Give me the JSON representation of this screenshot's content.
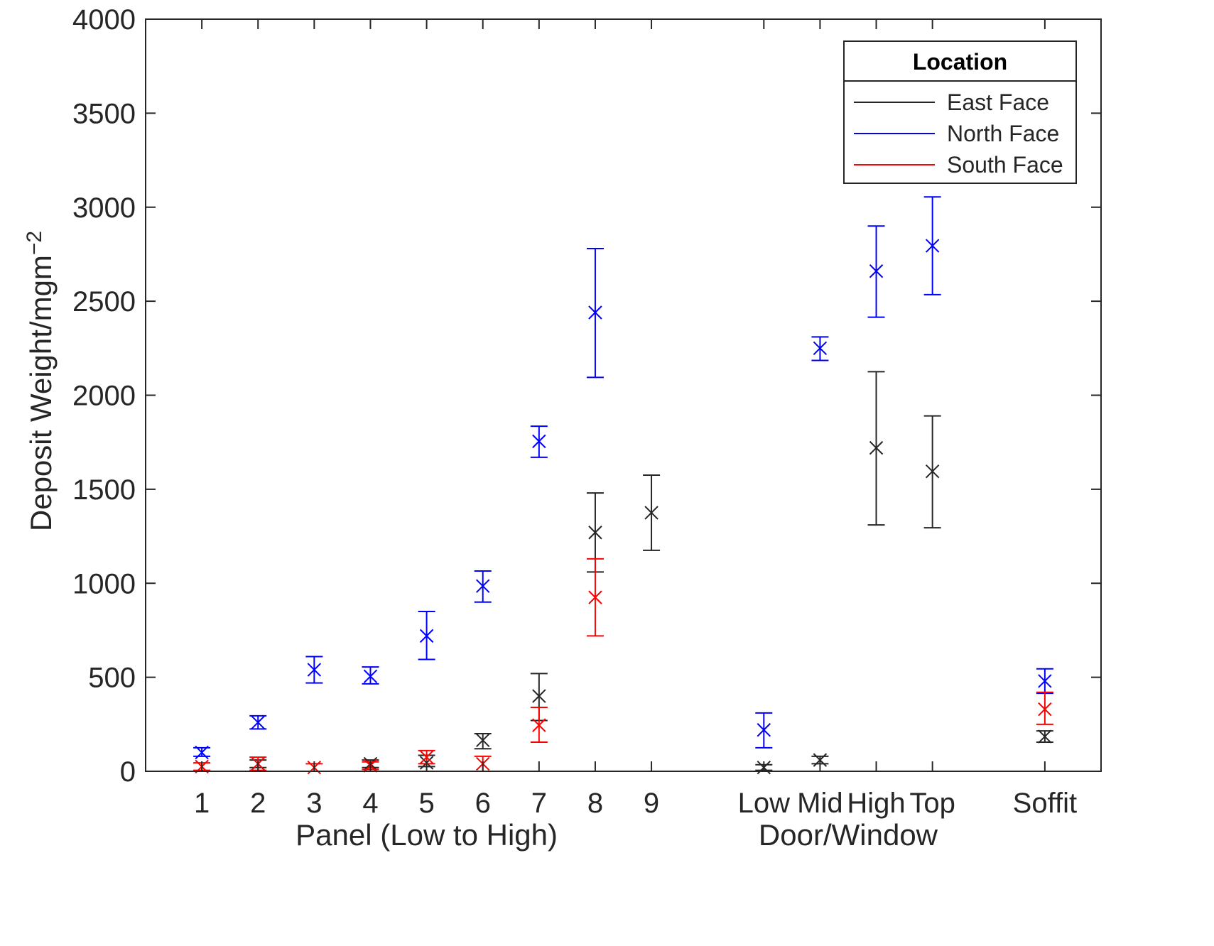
{
  "chart_data": {
    "type": "errorbar",
    "categories": [
      "1",
      "2",
      "3",
      "4",
      "5",
      "6",
      "7",
      "8",
      "9",
      "Low",
      "Mid",
      "High",
      "Top",
      "Soffit"
    ],
    "x": [
      1,
      2,
      3,
      4,
      5,
      6,
      7,
      8,
      9,
      11,
      12,
      13,
      14,
      16
    ],
    "xlim": [
      0,
      17
    ],
    "ylim": [
      0,
      4000
    ],
    "yticks": [
      0,
      500,
      1000,
      1500,
      2000,
      2500,
      3000,
      3500,
      4000
    ],
    "ylabel_base": "Deposit Weight/mgm",
    "ylabel_sup": "−2",
    "group_labels": [
      "Panel (Low to High)",
      "Door/Window"
    ],
    "legend": {
      "title": "Location",
      "position": "top-right"
    },
    "series": [
      {
        "name": "East Face",
        "color": "#262626",
        "points": [
          {
            "x": 2,
            "y": 40,
            "lo": 20,
            "hi": 60
          },
          {
            "x": 4,
            "y": 40,
            "lo": 20,
            "hi": 60
          },
          {
            "x": 5,
            "y": 45,
            "lo": 25,
            "hi": 85
          },
          {
            "x": 6,
            "y": 165,
            "lo": 120,
            "hi": 200
          },
          {
            "x": 7,
            "y": 400,
            "lo": 270,
            "hi": 520
          },
          {
            "x": 8,
            "y": 1270,
            "lo": 1060,
            "hi": 1480
          },
          {
            "x": 9,
            "y": 1375,
            "lo": 1175,
            "hi": 1575
          },
          {
            "x": 11,
            "y": 20,
            "lo": 5,
            "hi": 35
          },
          {
            "x": 12,
            "y": 60,
            "lo": 40,
            "hi": 80
          },
          {
            "x": 13,
            "y": 1720,
            "lo": 1310,
            "hi": 2125
          },
          {
            "x": 14,
            "y": 1595,
            "lo": 1295,
            "hi": 1890
          },
          {
            "x": 16,
            "y": 185,
            "lo": 155,
            "hi": 215
          }
        ]
      },
      {
        "name": "North Face",
        "color": "#0000ff",
        "points": [
          {
            "x": 1,
            "y": 100,
            "lo": 80,
            "hi": 125
          },
          {
            "x": 2,
            "y": 260,
            "lo": 225,
            "hi": 295
          },
          {
            "x": 3,
            "y": 540,
            "lo": 470,
            "hi": 610
          },
          {
            "x": 4,
            "y": 505,
            "lo": 465,
            "hi": 555
          },
          {
            "x": 5,
            "y": 720,
            "lo": 595,
            "hi": 850
          },
          {
            "x": 6,
            "y": 985,
            "lo": 900,
            "hi": 1065
          },
          {
            "x": 7,
            "y": 1755,
            "lo": 1670,
            "hi": 1835
          },
          {
            "x": 8,
            "y": 2440,
            "lo": 2095,
            "hi": 2780
          },
          {
            "x": 11,
            "y": 220,
            "lo": 125,
            "hi": 310
          },
          {
            "x": 12,
            "y": 2250,
            "lo": 2185,
            "hi": 2310
          },
          {
            "x": 13,
            "y": 2660,
            "lo": 2415,
            "hi": 2900
          },
          {
            "x": 14,
            "y": 2795,
            "lo": 2535,
            "hi": 3055
          },
          {
            "x": 16,
            "y": 480,
            "lo": 415,
            "hi": 545
          }
        ]
      },
      {
        "name": "South Face",
        "color": "#ff0000",
        "points": [
          {
            "x": 1,
            "y": 25,
            "lo": 5,
            "hi": 45
          },
          {
            "x": 2,
            "y": 40,
            "lo": 5,
            "hi": 75
          },
          {
            "x": 3,
            "y": 20,
            "lo": 0,
            "hi": 40
          },
          {
            "x": 4,
            "y": 30,
            "lo": 10,
            "hi": 50
          },
          {
            "x": 5,
            "y": 75,
            "lo": 40,
            "hi": 110
          },
          {
            "x": 6,
            "y": 40,
            "lo": 0,
            "hi": 80
          },
          {
            "x": 7,
            "y": 245,
            "lo": 155,
            "hi": 340
          },
          {
            "x": 8,
            "y": 925,
            "lo": 720,
            "hi": 1130
          },
          {
            "x": 16,
            "y": 330,
            "lo": 250,
            "hi": 420
          }
        ]
      }
    ]
  }
}
